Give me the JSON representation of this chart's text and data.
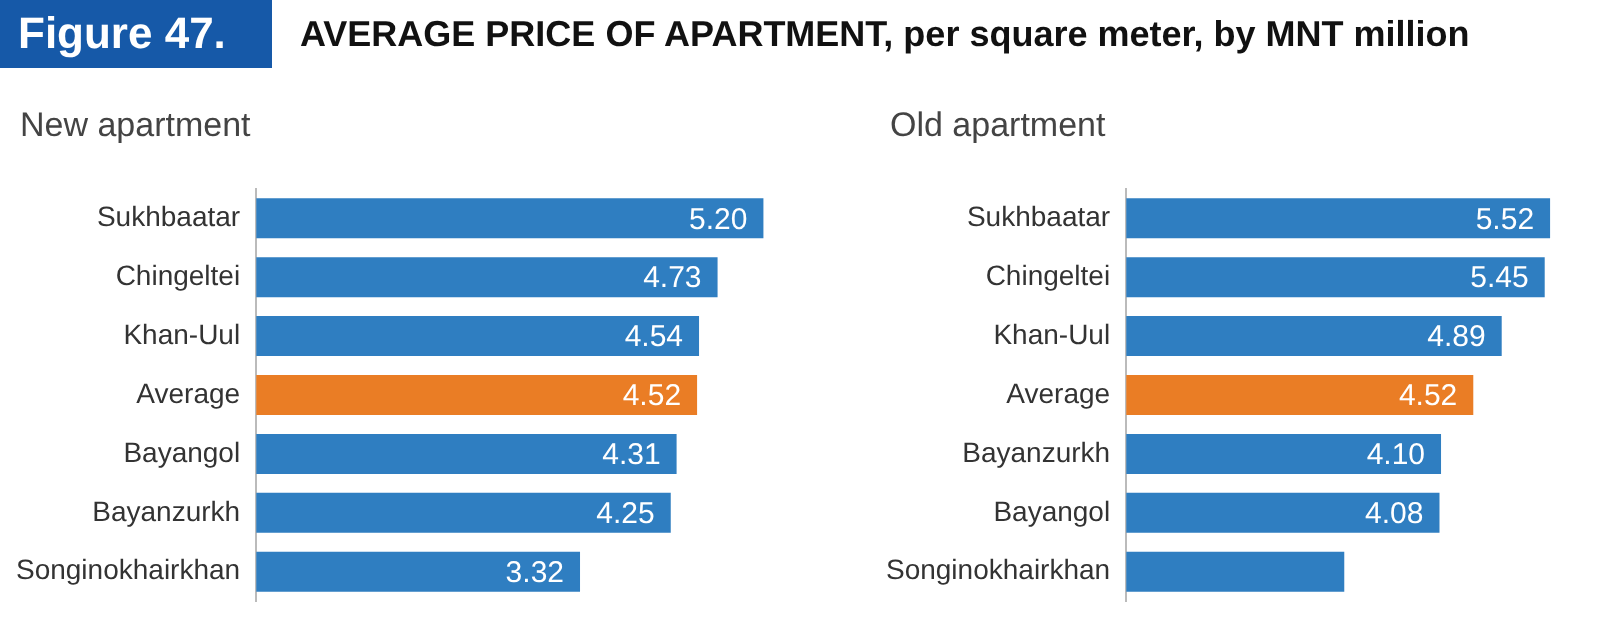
{
  "chart_data": [
    {
      "type": "bar",
      "orientation": "horizontal",
      "title": "New apartment",
      "annotations": [
        "Figure 47.",
        "AVERAGE PRICE OF APARTMENT, per square meter, by MNT million"
      ],
      "categories": [
        "Sukhbaatar",
        "Chingeltei",
        "Khan-Uul",
        "Average",
        "Bayangol",
        "Bayanzurkh",
        "Songinokhairkhan"
      ],
      "values": [
        5.2,
        4.73,
        4.54,
        4.52,
        4.31,
        4.25,
        3.32
      ],
      "colors": [
        "#2f7ec1",
        "#2f7ec1",
        "#2f7ec1",
        "#ea7d25",
        "#2f7ec1",
        "#2f7ec1",
        "#2f7ec1"
      ],
      "value_labels": [
        "5.20",
        "4.73",
        "4.54",
        "4.52",
        "4.31",
        "4.25",
        "3.32"
      ]
    },
    {
      "type": "bar",
      "orientation": "horizontal",
      "title": "Old apartment",
      "categories": [
        "Sukhbaatar",
        "Chingeltei",
        "Khan-Uul",
        "Average",
        "Bayanzurkh",
        "Bayangol",
        "Songinokhairkhan"
      ],
      "values": [
        5.52,
        5.45,
        4.89,
        4.52,
        4.1,
        4.08,
        2.84
      ],
      "colors": [
        "#2f7ec1",
        "#2f7ec1",
        "#2f7ec1",
        "#ea7d25",
        "#2f7ec1",
        "#2f7ec1",
        "#2f7ec1"
      ],
      "value_labels": [
        "5.52",
        "5.45",
        "4.89",
        "4.52",
        "4.10",
        "4.08",
        null
      ]
    }
  ]
}
